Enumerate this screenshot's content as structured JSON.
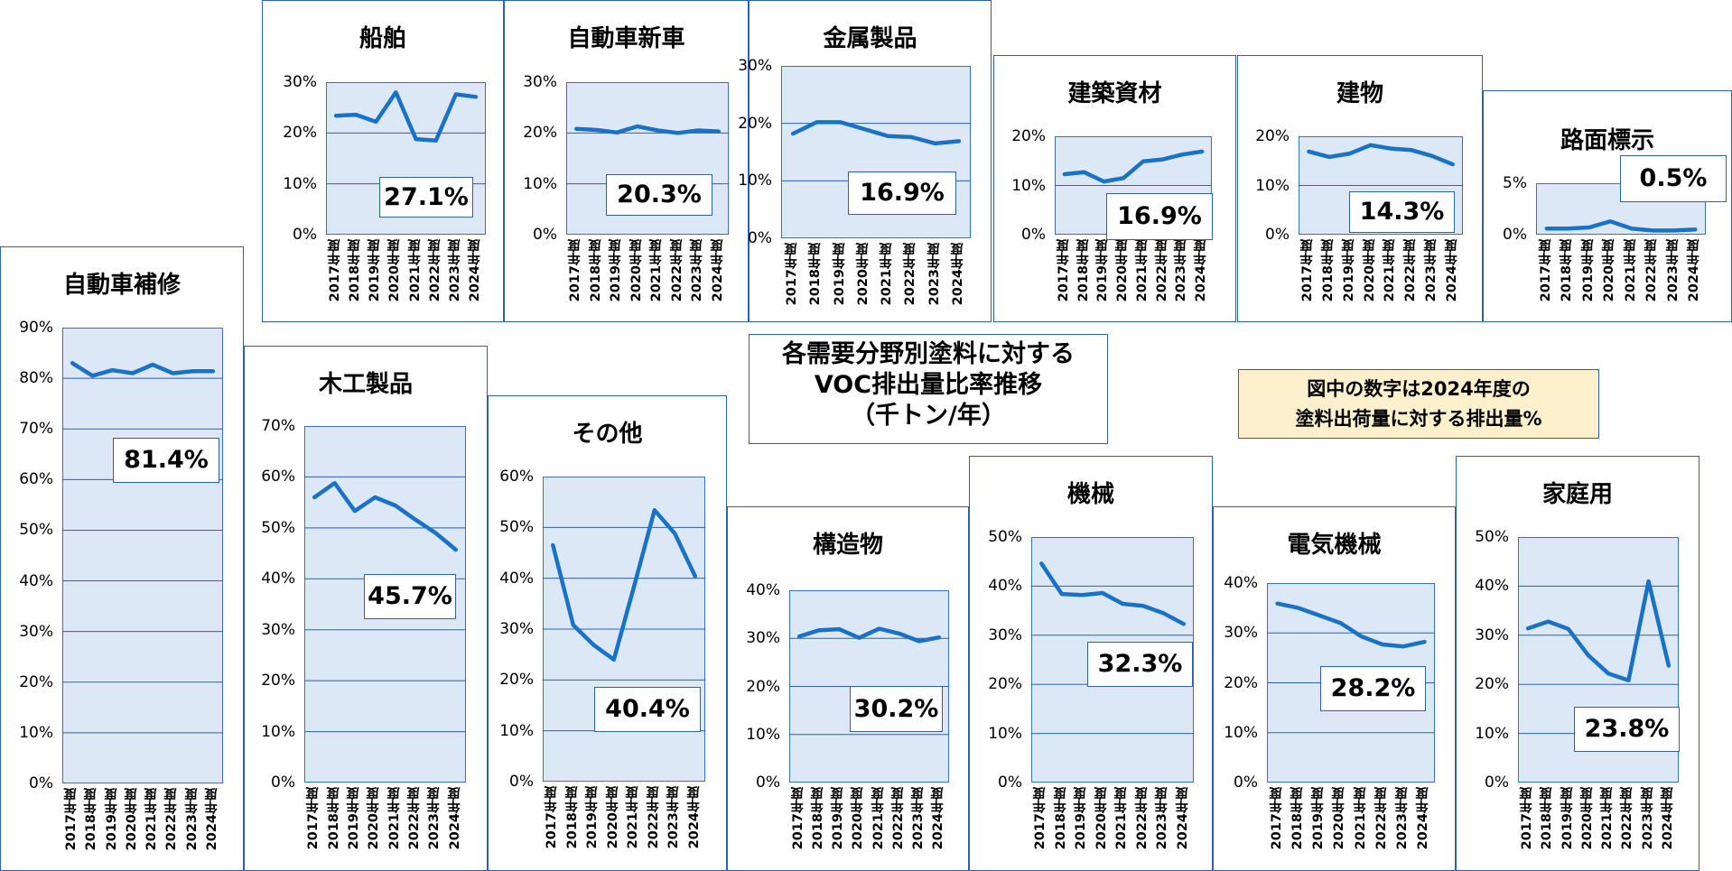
{
  "main_title": {
    "line1": "各需要分野別塗料に対する",
    "line2": "VOC排出量比率推移",
    "line3": "（千トン/年）"
  },
  "note": {
    "line1": "図中の数字は2024年度の",
    "line2": "塗料出荷量に対する排出量%"
  },
  "colors": {
    "line": "#1a72c6",
    "plot_bg": "#dde8f6",
    "border": "#2e5fb0",
    "note_bg": "#fdf0cd"
  },
  "chart_data": [
    {
      "type": "line",
      "title": "船舶",
      "categories": [
        "2017年度",
        "2018年度",
        "2019年度",
        "2020年度",
        "2021年度",
        "2022年度",
        "2023年度",
        "2024年度"
      ],
      "values": [
        23.4,
        23.6,
        22.2,
        28.0,
        18.8,
        18.5,
        27.6,
        27.1
      ],
      "ylim": [
        0,
        30
      ],
      "yticks": [
        "0%",
        "10%",
        "20%",
        "30%"
      ],
      "label": "27.1%"
    },
    {
      "type": "line",
      "title": "自動車新車",
      "categories": [
        "2017年度",
        "2018年度",
        "2019年度",
        "2020年度",
        "2021年度",
        "2022年度",
        "2023年度",
        "2024年度"
      ],
      "values": [
        20.8,
        20.6,
        20.1,
        21.3,
        20.5,
        20.0,
        20.5,
        20.3
      ],
      "ylim": [
        0,
        30
      ],
      "yticks": [
        "0%",
        "10%",
        "20%",
        "30%"
      ],
      "label": "20.3%"
    },
    {
      "type": "line",
      "title": "金属製品",
      "categories": [
        "2017年度",
        "2018年度",
        "2019年度",
        "2020年度",
        "2021年度",
        "2022年度",
        "2023年度",
        "2024年度"
      ],
      "values": [
        18.2,
        20.2,
        20.2,
        19.0,
        17.8,
        17.6,
        16.5,
        16.9
      ],
      "ylim": [
        0,
        30
      ],
      "yticks": [
        "0%",
        "10%",
        "20%",
        "30%"
      ],
      "label": "16.9%"
    },
    {
      "type": "line",
      "title": "建築資材",
      "categories": [
        "2017年度",
        "2018年度",
        "2019年度",
        "2020年度",
        "2021年度",
        "2022年度",
        "2023年度",
        "2024年度"
      ],
      "values": [
        12.3,
        12.7,
        10.8,
        11.5,
        14.9,
        15.3,
        16.3,
        16.9
      ],
      "ylim": [
        0,
        20
      ],
      "yticks": [
        "0%",
        "10%",
        "20%"
      ],
      "label": "16.9%"
    },
    {
      "type": "line",
      "title": "建物",
      "categories": [
        "2017年度",
        "2018年度",
        "2019年度",
        "2020年度",
        "2021年度",
        "2022年度",
        "2023年度",
        "2024年度"
      ],
      "values": [
        16.9,
        15.8,
        16.5,
        18.2,
        17.5,
        17.2,
        16.0,
        14.3
      ],
      "ylim": [
        0,
        20
      ],
      "yticks": [
        "0%",
        "10%",
        "20%"
      ],
      "label": "14.3%"
    },
    {
      "type": "line",
      "title": "路面標示",
      "categories": [
        "2017年度",
        "2018年度",
        "2019年度",
        "2020年度",
        "2021年度",
        "2022年度",
        "2023年度",
        "2024年度"
      ],
      "values": [
        0.6,
        0.6,
        0.7,
        1.3,
        0.6,
        0.4,
        0.4,
        0.5
      ],
      "ylim": [
        0,
        5
      ],
      "yticks": [
        "0%",
        "5%"
      ],
      "label": "0.5%"
    },
    {
      "type": "line",
      "title": "自動車補修",
      "categories": [
        "2017年度",
        "2018年度",
        "2019年度",
        "2020年度",
        "2021年度",
        "2022年度",
        "2023年度",
        "2024年度"
      ],
      "values": [
        83.0,
        80.5,
        81.6,
        81.0,
        82.7,
        81.0,
        81.4,
        81.4
      ],
      "ylim": [
        0,
        90
      ],
      "yticks": [
        "0%",
        "10%",
        "20%",
        "30%",
        "40%",
        "50%",
        "60%",
        "70%",
        "80%",
        "90%"
      ],
      "label": "81.4%"
    },
    {
      "type": "line",
      "title": "木工製品",
      "categories": [
        "2017年度",
        "2018年度",
        "2019年度",
        "2020年度",
        "2021年度",
        "2022年度",
        "2023年度",
        "2024年度"
      ],
      "values": [
        56.0,
        58.8,
        53.3,
        56.0,
        54.4,
        51.6,
        49.0,
        45.7
      ],
      "ylim": [
        0,
        70
      ],
      "yticks": [
        "0%",
        "10%",
        "20%",
        "30%",
        "40%",
        "50%",
        "60%",
        "70%"
      ],
      "label": "45.7%"
    },
    {
      "type": "line",
      "title": "その他",
      "categories": [
        "2017年度",
        "2018年度",
        "2019年度",
        "2020年度",
        "2021年度",
        "2022年度",
        "2023年度",
        "2024年度"
      ],
      "values": [
        46.5,
        30.8,
        26.9,
        24.0,
        38.5,
        53.4,
        48.8,
        40.4
      ],
      "ylim": [
        0,
        60
      ],
      "yticks": [
        "0%",
        "10%",
        "20%",
        "30%",
        "40%",
        "50%",
        "60%"
      ],
      "label": "40.4%"
    },
    {
      "type": "line",
      "title": "構造物",
      "categories": [
        "2017年度",
        "2018年度",
        "2019年度",
        "2020年度",
        "2021年度",
        "2022年度",
        "2023年度",
        "2024年度"
      ],
      "values": [
        30.4,
        31.7,
        31.9,
        30.1,
        32.0,
        31.0,
        29.4,
        30.2
      ],
      "ylim": [
        0,
        40
      ],
      "yticks": [
        "0%",
        "10%",
        "20%",
        "30%",
        "40%"
      ],
      "label": "30.2%"
    },
    {
      "type": "line",
      "title": "機械",
      "categories": [
        "2017年度",
        "2018年度",
        "2019年度",
        "2020年度",
        "2021年度",
        "2022年度",
        "2023年度",
        "2024年度"
      ],
      "values": [
        44.6,
        38.4,
        38.2,
        38.6,
        36.4,
        36.0,
        34.5,
        32.3
      ],
      "ylim": [
        0,
        50
      ],
      "yticks": [
        "0%",
        "10%",
        "20%",
        "30%",
        "40%",
        "50%"
      ],
      "label": "32.3%"
    },
    {
      "type": "line",
      "title": "電気機械",
      "categories": [
        "2017年度",
        "2018年度",
        "2019年度",
        "2020年度",
        "2021年度",
        "2022年度",
        "2023年度",
        "2024年度"
      ],
      "values": [
        35.9,
        35.0,
        33.5,
        32.0,
        29.3,
        27.7,
        27.3,
        28.2
      ],
      "ylim": [
        0,
        40
      ],
      "yticks": [
        "0%",
        "10%",
        "20%",
        "30%",
        "40%"
      ],
      "label": "28.2%"
    },
    {
      "type": "line",
      "title": "家庭用",
      "categories": [
        "2017年度",
        "2018年度",
        "2019年度",
        "2020年度",
        "2021年度",
        "2022年度",
        "2023年度",
        "2024年度"
      ],
      "values": [
        31.4,
        32.8,
        31.3,
        25.9,
        22.2,
        20.8,
        41.0,
        23.8
      ],
      "ylim": [
        0,
        50
      ],
      "yticks": [
        "0%",
        "10%",
        "20%",
        "30%",
        "40%",
        "50%"
      ],
      "label": "23.8%"
    }
  ]
}
